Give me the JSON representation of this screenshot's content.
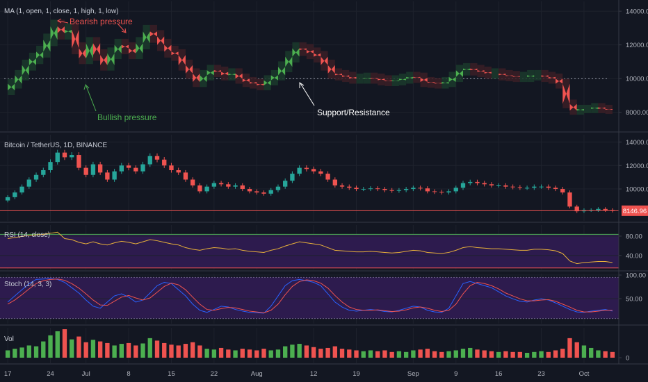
{
  "chart_data": [
    {
      "type": "line",
      "pane": "ma",
      "title": "MA (1, open, 1, close, 1, high, 1, low)",
      "y_ticks": [
        8000,
        10000,
        12000,
        14000
      ],
      "y_tick_labels": [
        "8000.00",
        "10000.00",
        "12000.00",
        "14000.00"
      ],
      "ylim": [
        7000,
        14500
      ],
      "support_level": 10000,
      "annotations": {
        "bearish": "Bearish pressure",
        "bullish": "Bullish pressure",
        "support": "Support/Resistance"
      },
      "colors": {
        "bull": "#4caf50",
        "bear": "#ef5350",
        "bearish_text": "#ef5350",
        "bullish_text": "#4caf50",
        "support_text": "#ffffff"
      }
    },
    {
      "type": "candlestick",
      "pane": "price",
      "title": "Bitcoin / TetherUS, 1D, BINANCE",
      "y_ticks": [
        10000,
        12000,
        14000
      ],
      "y_tick_labels": [
        "10000.00",
        "12000.00",
        "14000.00"
      ],
      "ylim": [
        7400,
        14500
      ],
      "last_price": 8146.96,
      "last_price_label": "8146.96",
      "close": [
        9300,
        9700,
        10200,
        10800,
        11200,
        11600,
        12300,
        13100,
        12700,
        12900,
        11800,
        11200,
        12100,
        11400,
        10800,
        11500,
        12000,
        11800,
        11500,
        12100,
        12800,
        12500,
        12000,
        11600,
        11400,
        10800,
        10300,
        9800,
        10200,
        10500,
        10400,
        10200,
        10300,
        10000,
        9800,
        9700,
        9600,
        9900,
        10200,
        10700,
        11300,
        11800,
        11700,
        11500,
        11300,
        10800,
        10300,
        10200,
        10100,
        10000,
        10000,
        10050,
        10000,
        9900,
        9850,
        9900,
        10000,
        10100,
        10050,
        9800,
        9750,
        9700,
        9800,
        10100,
        10500,
        10600,
        10500,
        10400,
        10300,
        10300,
        10200,
        10150,
        10100,
        10100,
        10200,
        10200,
        10100,
        10000,
        9700,
        8500,
        8100,
        8200,
        8200,
        8300,
        8200,
        8150
      ],
      "colors": {
        "up": "#26a69a",
        "down": "#ef5350"
      }
    },
    {
      "type": "line",
      "pane": "rsi",
      "title": "RSI (14, close)",
      "y_ticks": [
        40,
        80
      ],
      "y_tick_labels": [
        "40.00",
        "80.00"
      ],
      "ylim": [
        14,
        100
      ],
      "upper_band": 70,
      "lower_band": 30,
      "values": [
        72,
        74,
        76,
        78,
        79,
        80,
        82,
        84,
        72,
        70,
        65,
        62,
        66,
        62,
        60,
        64,
        67,
        65,
        62,
        66,
        70,
        68,
        65,
        62,
        60,
        55,
        52,
        50,
        53,
        55,
        54,
        52,
        53,
        50,
        48,
        47,
        46,
        50,
        53,
        58,
        62,
        66,
        64,
        62,
        60,
        55,
        50,
        49,
        48,
        47,
        47,
        48,
        47,
        46,
        45,
        46,
        48,
        50,
        49,
        46,
        45,
        44,
        46,
        50,
        55,
        57,
        55,
        54,
        53,
        53,
        52,
        51,
        50,
        50,
        52,
        52,
        51,
        49,
        44,
        30,
        25,
        27,
        28,
        29,
        29,
        27
      ],
      "colors": {
        "line": "#e8b13a",
        "band_fill": "#2d1b4e",
        "upper": "#4caf50",
        "lower": "#ef5350"
      }
    },
    {
      "type": "line",
      "pane": "stoch",
      "title": "Stoch (14, 3, 3)",
      "y_ticks": [
        50,
        100
      ],
      "y_tick_labels": [
        "50.00",
        "100.00"
      ],
      "ylim": [
        0,
        100
      ],
      "upper_band": 80,
      "lower_band": 20,
      "k": [
        40,
        55,
        70,
        85,
        95,
        96,
        97,
        95,
        88,
        75,
        62,
        45,
        30,
        25,
        40,
        55,
        60,
        52,
        40,
        45,
        62,
        80,
        88,
        85,
        70,
        55,
        35,
        20,
        15,
        22,
        30,
        28,
        22,
        18,
        15,
        14,
        13,
        30,
        55,
        80,
        92,
        95,
        92,
        88,
        80,
        60,
        40,
        28,
        20,
        18,
        20,
        22,
        20,
        17,
        16,
        20,
        25,
        30,
        28,
        20,
        16,
        15,
        25,
        55,
        85,
        90,
        85,
        80,
        75,
        65,
        55,
        48,
        42,
        40,
        45,
        48,
        45,
        38,
        30,
        22,
        16,
        15,
        18,
        20,
        22,
        18
      ],
      "d": [
        35,
        45,
        58,
        72,
        85,
        92,
        95,
        96,
        93,
        85,
        74,
        60,
        45,
        33,
        32,
        42,
        52,
        56,
        50,
        45,
        50,
        64,
        78,
        86,
        82,
        70,
        52,
        35,
        22,
        20,
        24,
        27,
        26,
        22,
        18,
        16,
        14,
        20,
        35,
        58,
        78,
        90,
        94,
        92,
        86,
        74,
        56,
        40,
        28,
        22,
        20,
        20,
        21,
        19,
        17,
        18,
        21,
        26,
        28,
        25,
        20,
        17,
        20,
        35,
        60,
        80,
        88,
        85,
        80,
        72,
        62,
        55,
        48,
        43,
        43,
        45,
        46,
        42,
        35,
        28,
        20,
        16,
        16,
        18,
        20,
        20
      ],
      "colors": {
        "k": "#2962ff",
        "d": "#ef5350",
        "band_fill": "#2d1b4e"
      }
    },
    {
      "type": "bar",
      "pane": "volume",
      "title": "Vol",
      "y_ticks": [
        0
      ],
      "y_tick_labels": [
        "0"
      ],
      "values": [
        18,
        22,
        25,
        30,
        28,
        40,
        55,
        65,
        70,
        45,
        52,
        38,
        44,
        40,
        36,
        30,
        34,
        36,
        30,
        35,
        48,
        42,
        36,
        32,
        30,
        34,
        38,
        30,
        22,
        20,
        24,
        20,
        18,
        22,
        20,
        18,
        22,
        18,
        20,
        28,
        32,
        34,
        30,
        26,
        22,
        24,
        28,
        22,
        20,
        18,
        16,
        18,
        16,
        18,
        14,
        16,
        14,
        18,
        20,
        22,
        16,
        14,
        16,
        18,
        22,
        24,
        20,
        18,
        16,
        14,
        16,
        14,
        14,
        12,
        14,
        16,
        14,
        18,
        22,
        48,
        38,
        30,
        24,
        18,
        16,
        14
      ],
      "colors": {
        "up": "#4caf50",
        "down": "#ef5350"
      }
    }
  ],
  "x_axis": {
    "labels": [
      "17",
      "24",
      "Jul",
      "8",
      "15",
      "22",
      "Aug",
      "12",
      "19",
      "Sep",
      "9",
      "16",
      "23",
      "Oct"
    ]
  },
  "theme": {
    "background": "#131722",
    "grid": "#1e222d",
    "separator": "#363a45",
    "axis_text": "#b2b5be"
  }
}
